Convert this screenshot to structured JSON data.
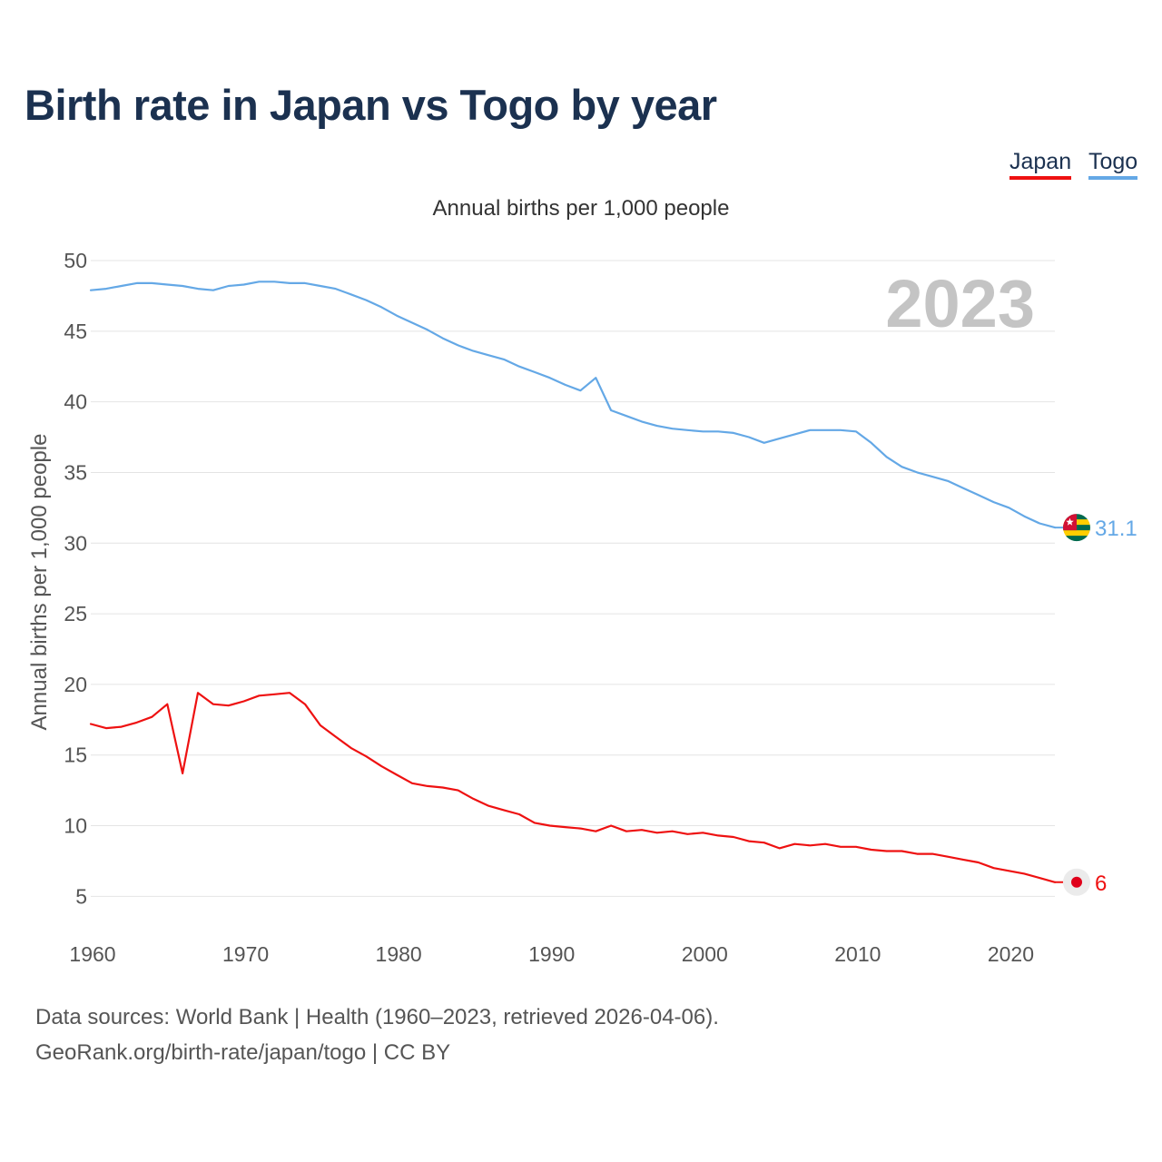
{
  "chart_data": {
    "type": "line",
    "title": "Birth rate in Japan vs Togo by year",
    "subtitle": "Annual births per 1,000 people",
    "ylabel": "Annual births per 1,000 people",
    "xlabel": "",
    "year_label": "2023",
    "xlim": [
      1960,
      2023
    ],
    "ylim": [
      2,
      50
    ],
    "y_ticks": [
      5,
      10,
      15,
      20,
      25,
      30,
      35,
      40,
      45,
      50
    ],
    "x_ticks": [
      1960,
      1970,
      1980,
      1990,
      2000,
      2010,
      2020
    ],
    "grid": true,
    "legend_position": "top-right",
    "x": [
      1960,
      1961,
      1962,
      1963,
      1964,
      1965,
      1966,
      1967,
      1968,
      1969,
      1970,
      1971,
      1972,
      1973,
      1974,
      1975,
      1976,
      1977,
      1978,
      1979,
      1980,
      1981,
      1982,
      1983,
      1984,
      1985,
      1986,
      1987,
      1988,
      1989,
      1990,
      1991,
      1992,
      1993,
      1994,
      1995,
      1996,
      1997,
      1998,
      1999,
      2000,
      2001,
      2002,
      2003,
      2004,
      2005,
      2006,
      2007,
      2008,
      2009,
      2010,
      2011,
      2012,
      2013,
      2014,
      2015,
      2016,
      2017,
      2018,
      2019,
      2020,
      2021,
      2022,
      2023
    ],
    "series": [
      {
        "name": "Japan",
        "color": "#ee1111",
        "end_label": "6",
        "marker": "japan-flag",
        "values": [
          17.2,
          16.9,
          17.0,
          17.3,
          17.7,
          18.6,
          13.7,
          19.4,
          18.6,
          18.5,
          18.8,
          19.2,
          19.3,
          19.4,
          18.6,
          17.1,
          16.3,
          15.5,
          14.9,
          14.2,
          13.6,
          13.0,
          12.8,
          12.7,
          12.5,
          11.9,
          11.4,
          11.1,
          10.8,
          10.2,
          10.0,
          9.9,
          9.8,
          9.6,
          10.0,
          9.6,
          9.7,
          9.5,
          9.6,
          9.4,
          9.5,
          9.3,
          9.2,
          8.9,
          8.8,
          8.4,
          8.7,
          8.6,
          8.7,
          8.5,
          8.5,
          8.3,
          8.2,
          8.2,
          8.0,
          8.0,
          7.8,
          7.6,
          7.4,
          7.0,
          6.8,
          6.6,
          6.3,
          6.0
        ]
      },
      {
        "name": "Togo",
        "color": "#64a8e6",
        "end_label": "31.1",
        "marker": "togo-flag",
        "values": [
          47.9,
          48.0,
          48.2,
          48.4,
          48.4,
          48.3,
          48.2,
          48.0,
          47.9,
          48.2,
          48.3,
          48.5,
          48.5,
          48.4,
          48.4,
          48.2,
          48.0,
          47.6,
          47.2,
          46.7,
          46.1,
          45.6,
          45.1,
          44.5,
          44.0,
          43.6,
          43.3,
          43.0,
          42.5,
          42.1,
          41.7,
          41.2,
          40.8,
          41.7,
          39.4,
          39.0,
          38.6,
          38.3,
          38.1,
          38.0,
          37.9,
          37.9,
          37.8,
          37.5,
          37.1,
          37.4,
          37.7,
          38.0,
          38.0,
          38.0,
          37.9,
          37.1,
          36.1,
          35.4,
          35.0,
          34.7,
          34.4,
          33.9,
          33.4,
          32.9,
          32.5,
          31.9,
          31.4,
          31.1
        ]
      }
    ]
  },
  "source": {
    "line1": "Data sources: World Bank | Health (1960–2023, retrieved 2026-04-06).",
    "line2": "GeoRank.org/birth-rate/japan/togo | CC BY"
  }
}
